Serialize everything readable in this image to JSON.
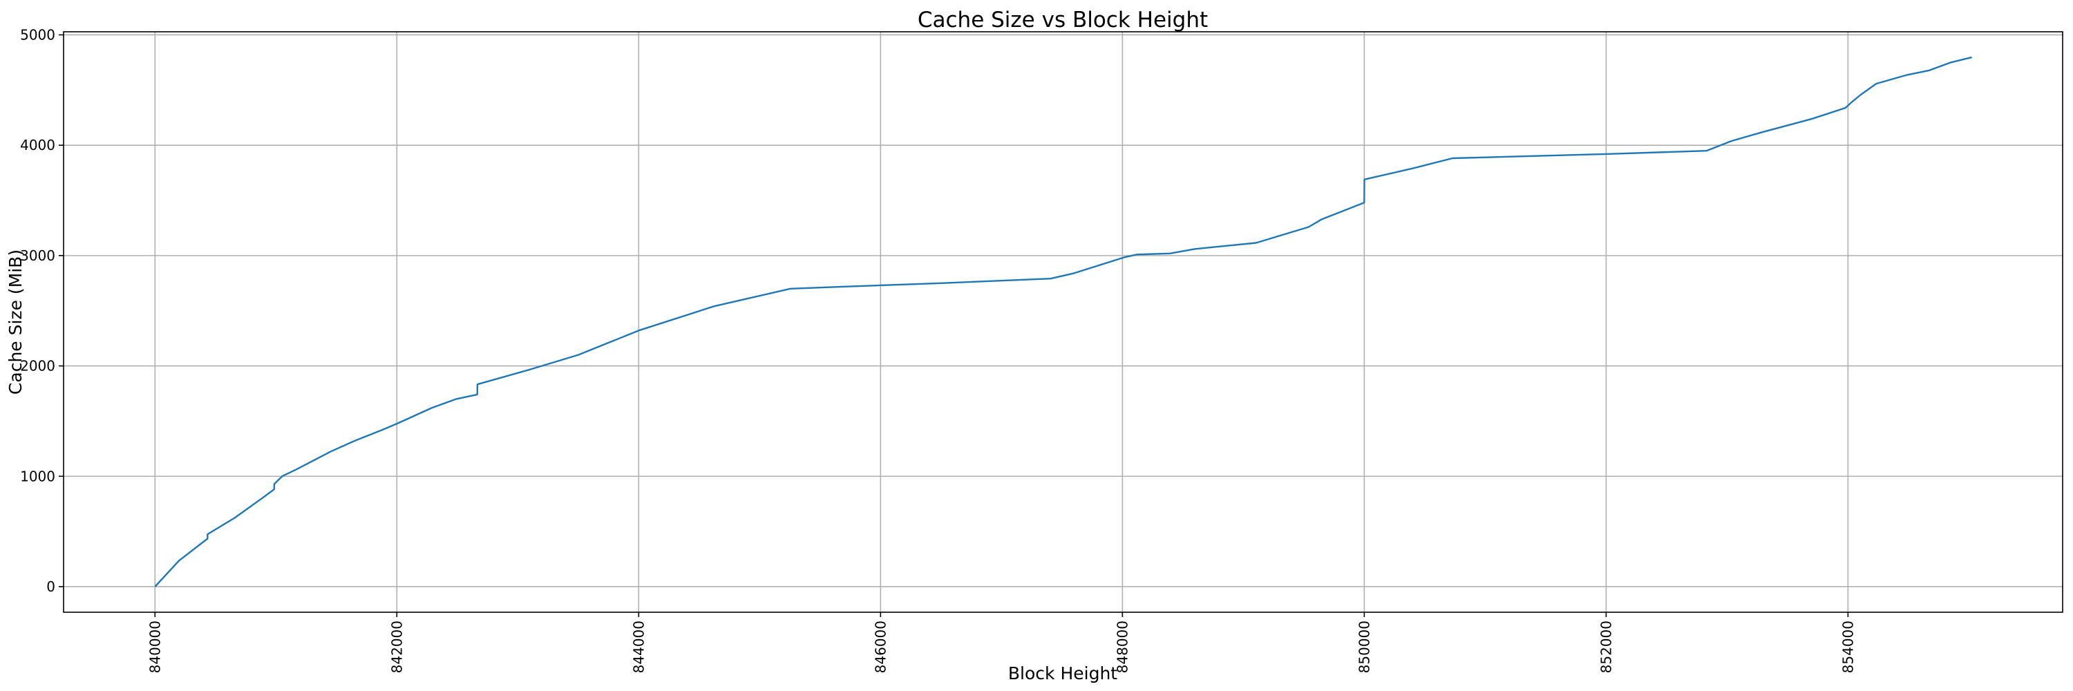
{
  "chart_data": {
    "type": "line",
    "title": "Cache Size vs Block Height",
    "xlabel": "Block Height",
    "ylabel": "Cache Size (MiB)",
    "xlim": [
      839244,
      855775
    ],
    "ylim": [
      -232,
      5028
    ],
    "xticks": [
      840000,
      842000,
      844000,
      846000,
      848000,
      850000,
      852000,
      854000
    ],
    "yticks": [
      0,
      1000,
      2000,
      3000,
      4000,
      5000
    ],
    "grid": true,
    "line_color": "#1f77b4",
    "grid_color": "#b0b0b0",
    "series": [
      {
        "x": [
          840000,
          840199,
          840434,
          840435,
          840658,
          840888,
          840985,
          840986,
          841054,
          841168,
          841449,
          841653,
          841883,
          842010,
          842291,
          842495,
          842665,
          842666,
          843093,
          843500,
          844009,
          844621,
          845255,
          845605,
          846500,
          847406,
          847600,
          848011,
          848120,
          848393,
          848600,
          849105,
          849540,
          849650,
          850000,
          850001,
          850400,
          850730,
          851500,
          852000,
          852830,
          853035,
          853290,
          853698,
          853978,
          854030,
          854106,
          854234,
          854489,
          854667,
          854846,
          855024
        ],
        "y": [
          0,
          236,
          435,
          475,
          623,
          803,
          882,
          930,
          1002,
          1062,
          1222,
          1322,
          1422,
          1481,
          1621,
          1701,
          1741,
          1833,
          1965,
          2100,
          2324,
          2540,
          2700,
          2715,
          2750,
          2791,
          2840,
          2983,
          3010,
          3019,
          3060,
          3115,
          3259,
          3330,
          3480,
          3690,
          3790,
          3882,
          3905,
          3920,
          3950,
          4038,
          4118,
          4238,
          4338,
          4390,
          4458,
          4558,
          4637,
          4677,
          4749,
          4797
        ]
      }
    ]
  }
}
